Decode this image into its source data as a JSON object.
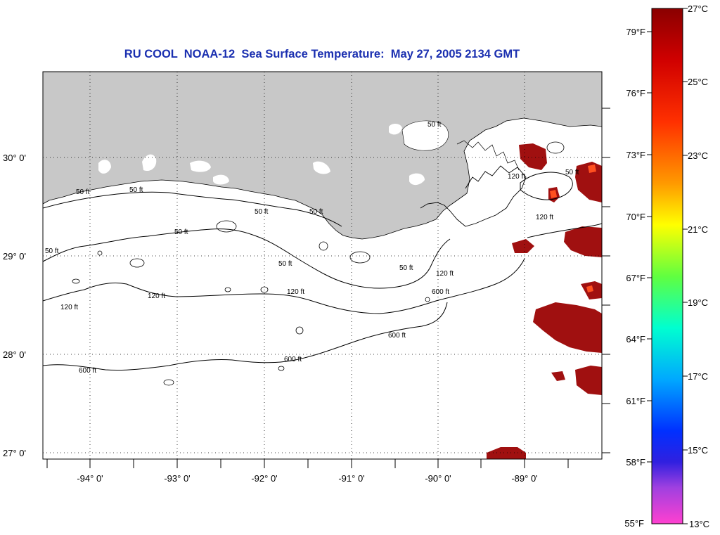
{
  "title": "RU COOL  NOAA-12  Sea Surface Temperature:  May 27, 2005 2134 GMT",
  "axes": {
    "lat_labels": [
      "30° 0'",
      "29° 0'",
      "28° 0'",
      "27° 0'"
    ],
    "lon_labels": [
      "-94° 0'",
      "-93° 0'",
      "-92° 0'",
      "-91° 0'",
      "-90° 0'",
      "-89° 0'"
    ]
  },
  "contours": {
    "labels": [
      "50 ft",
      "50 ft",
      "50 ft",
      "50 ft",
      "50 ft",
      "50 ft",
      "50 ft",
      "50 ft",
      "50 ft",
      "50 ft",
      "120 ft",
      "120 ft",
      "120 ft",
      "120 ft",
      "120 ft",
      "120 ft",
      "600 ft",
      "600 ft",
      "600 ft",
      "600 ft"
    ]
  },
  "colorbar": {
    "fahrenheit": [
      "79°F",
      "76°F",
      "73°F",
      "70°F",
      "67°F",
      "64°F",
      "61°F",
      "58°F",
      "55°F"
    ],
    "celsius": [
      "27°C",
      "25°C",
      "23°C",
      "21°C",
      "19°C",
      "17°C",
      "15°C",
      "13°C"
    ]
  },
  "colors": {
    "land": "#c8c8c8",
    "warm_sst": "#a01010",
    "title": "#1a2fb0",
    "cb_top": "#8a0000",
    "cb_bottom": "#ff40d0"
  }
}
